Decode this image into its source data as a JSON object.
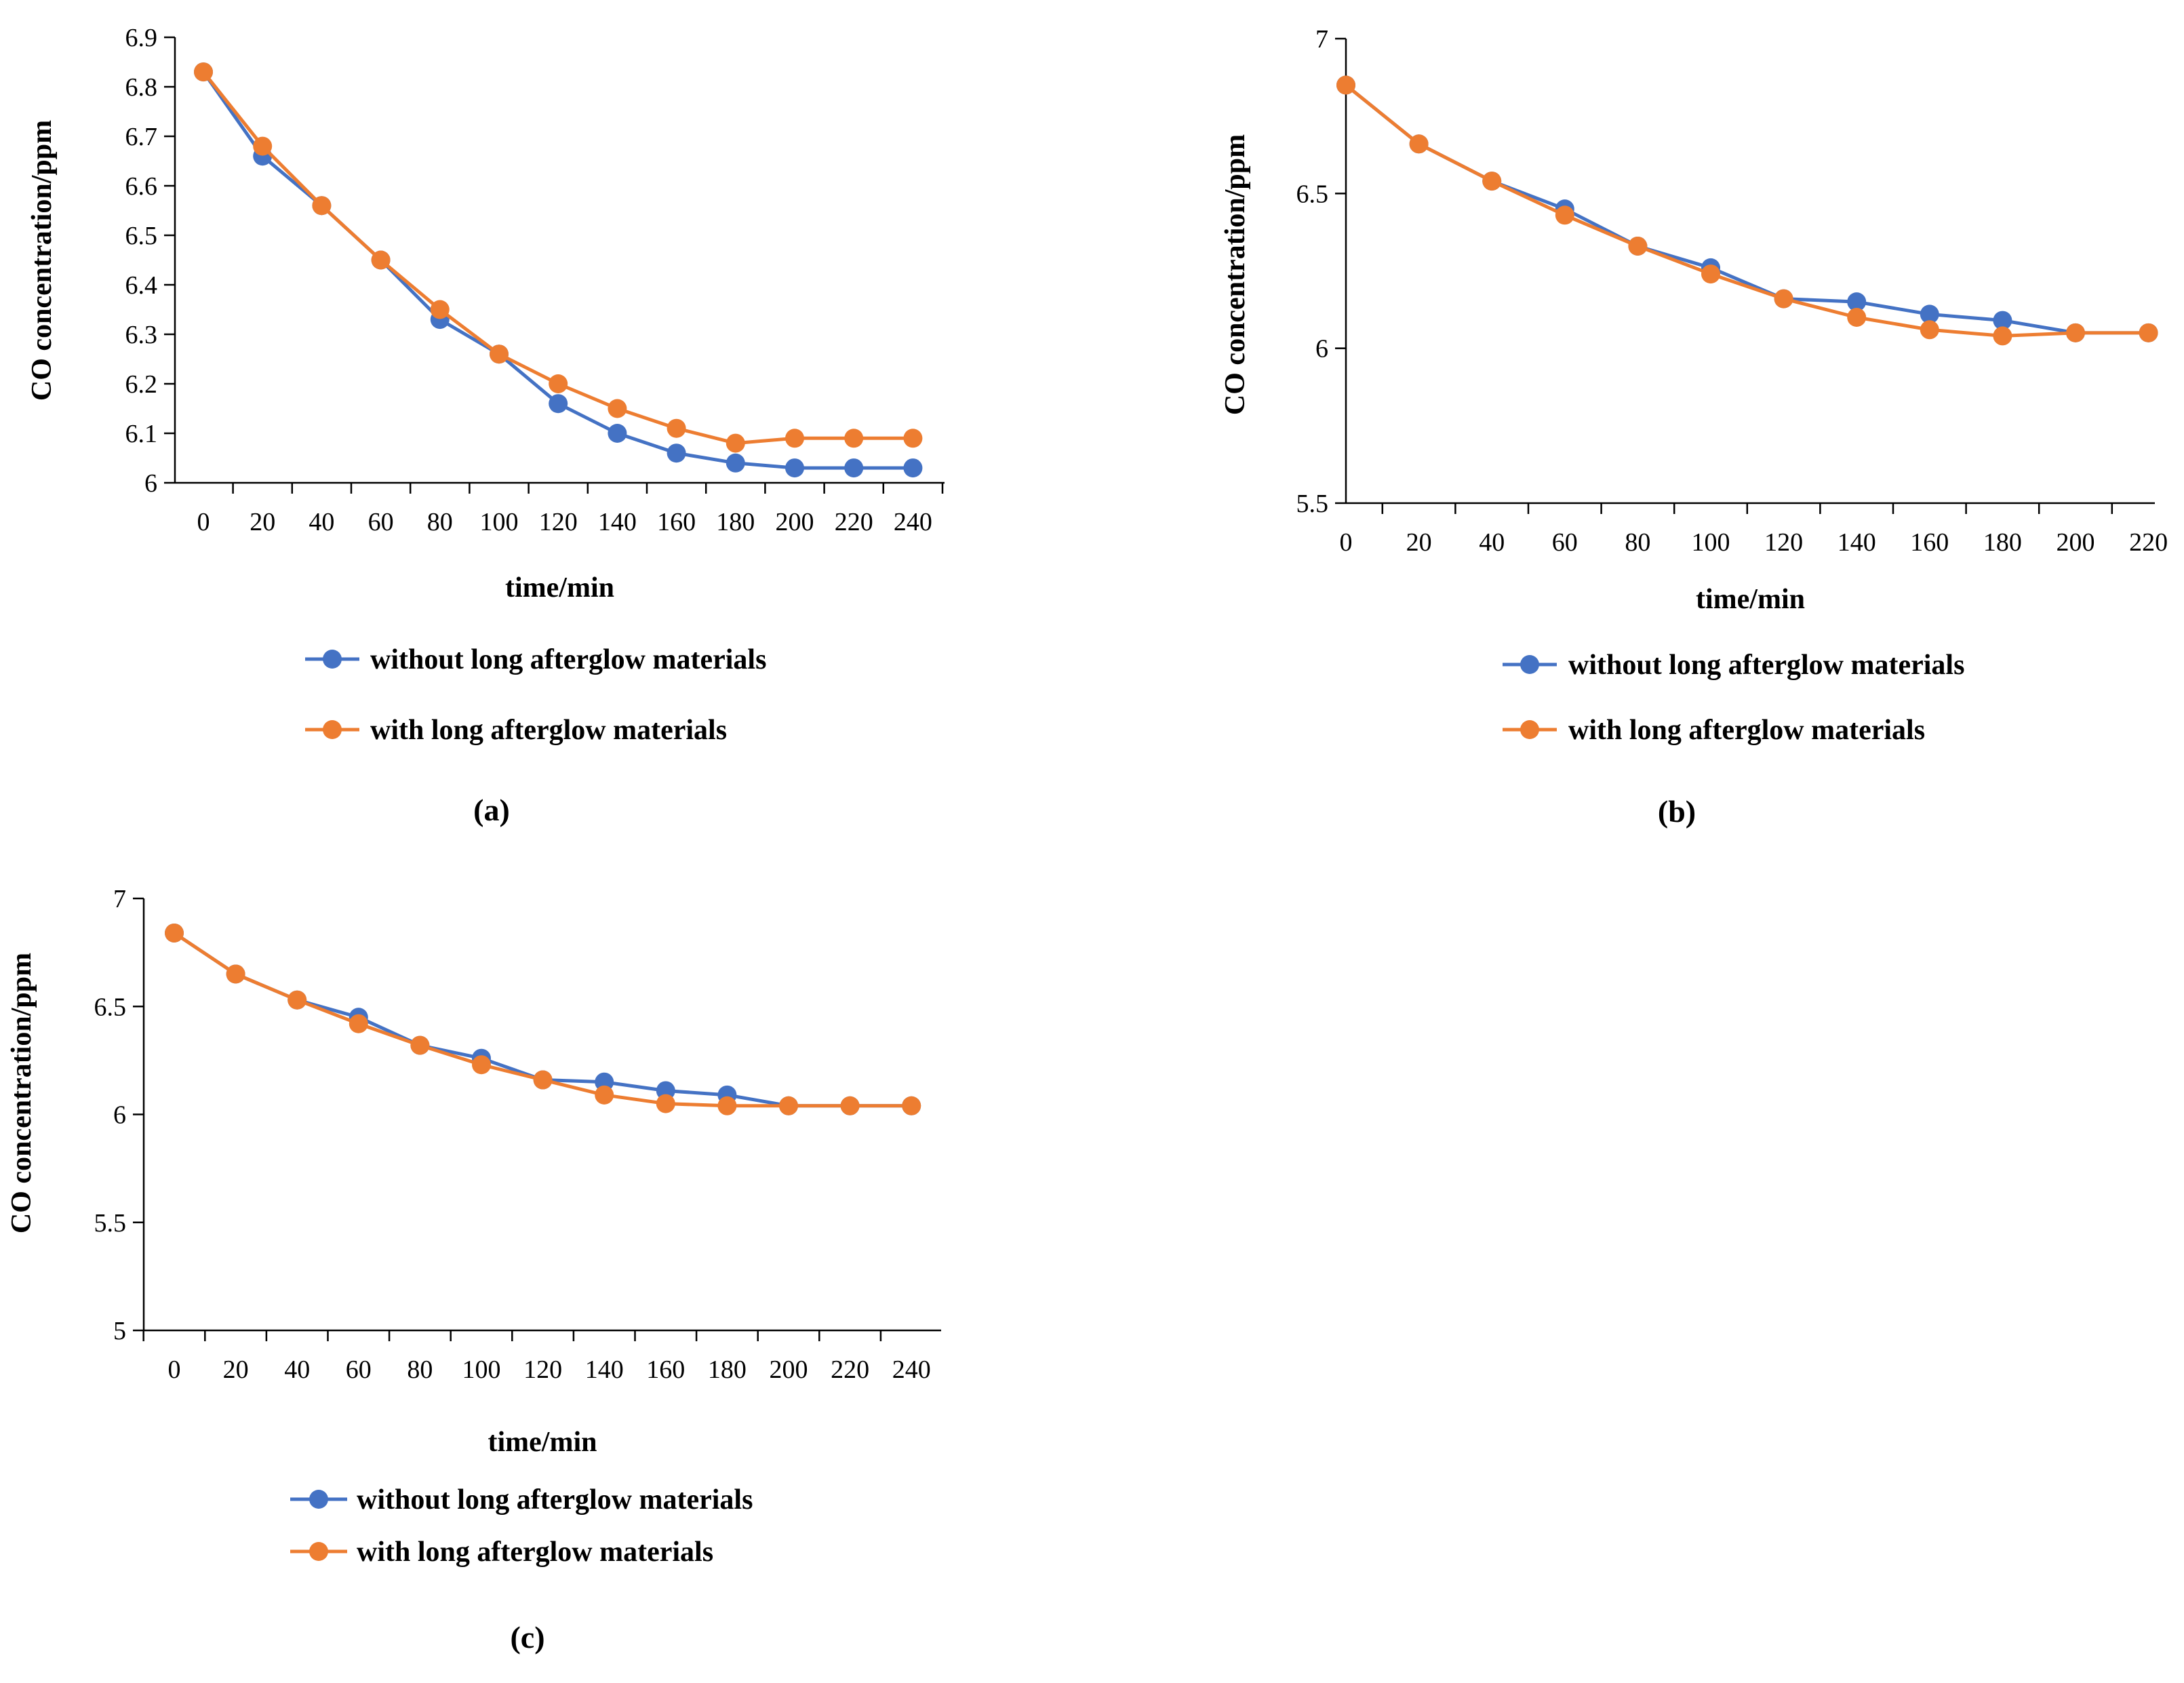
{
  "legend": {
    "series_without": "without long afterglow materials",
    "series_with": "with long afterglow materials"
  },
  "colors": {
    "without": "#4472C4",
    "with": "#ED7D31"
  },
  "chart_data": [
    {
      "type": "line",
      "panel_label": "(a)",
      "xlabel": "time/min",
      "ylabel": "CO concentration/ppm",
      "x": [
        0,
        20,
        40,
        60,
        80,
        100,
        120,
        140,
        160,
        180,
        200,
        220,
        240
      ],
      "ylim": [
        6,
        6.9
      ],
      "yticks": [
        "6",
        "6.1",
        "6.2",
        "6.3",
        "6.4",
        "6.5",
        "6.6",
        "6.7",
        "6.8",
        "6.9"
      ],
      "grid": false,
      "legend_position": "bottom",
      "series": [
        {
          "name": "without long afterglow materials",
          "values": [
            6.83,
            6.66,
            6.56,
            6.45,
            6.33,
            6.26,
            6.16,
            6.1,
            6.06,
            6.04,
            6.03,
            6.03,
            6.03
          ]
        },
        {
          "name": "with long afterglow materials",
          "values": [
            6.83,
            6.68,
            6.56,
            6.45,
            6.35,
            6.26,
            6.2,
            6.15,
            6.11,
            6.08,
            6.09,
            6.09,
            6.09
          ]
        }
      ]
    },
    {
      "type": "line",
      "panel_label": "(b)",
      "xlabel": "time/min",
      "ylabel": "CO concentration/ppm",
      "x": [
        0,
        20,
        40,
        60,
        80,
        100,
        120,
        140,
        160,
        180,
        200,
        220
      ],
      "ylim": [
        5.5,
        7
      ],
      "yticks": [
        "5.5",
        "6",
        "6.5",
        "7"
      ],
      "grid": false,
      "legend_position": "bottom",
      "series": [
        {
          "name": "without long afterglow materials",
          "values": [
            6.85,
            6.66,
            6.54,
            6.45,
            6.33,
            6.26,
            6.16,
            6.15,
            6.11,
            6.09,
            6.05,
            6.05
          ]
        },
        {
          "name": "with long afterglow materials",
          "values": [
            6.85,
            6.66,
            6.54,
            6.43,
            6.33,
            6.24,
            6.16,
            6.1,
            6.06,
            6.04,
            6.05,
            6.05
          ]
        }
      ]
    },
    {
      "type": "line",
      "panel_label": "(c)",
      "xlabel": "time/min",
      "ylabel": "CO concentration/ppm",
      "x": [
        0,
        20,
        40,
        60,
        80,
        100,
        120,
        140,
        160,
        180,
        200,
        220,
        240
      ],
      "ylim": [
        5,
        7
      ],
      "yticks": [
        "5",
        "5.5",
        "6",
        "6.5",
        "7"
      ],
      "grid": false,
      "legend_position": "bottom",
      "series": [
        {
          "name": "without long afterglow materials",
          "values": [
            6.84,
            6.65,
            6.53,
            6.45,
            6.32,
            6.26,
            6.16,
            6.15,
            6.11,
            6.09,
            6.04,
            6.04,
            6.04
          ]
        },
        {
          "name": "with long afterglow materials",
          "values": [
            6.84,
            6.65,
            6.53,
            6.42,
            6.32,
            6.23,
            6.16,
            6.09,
            6.05,
            6.04,
            6.04,
            6.04,
            6.04
          ]
        }
      ]
    }
  ]
}
